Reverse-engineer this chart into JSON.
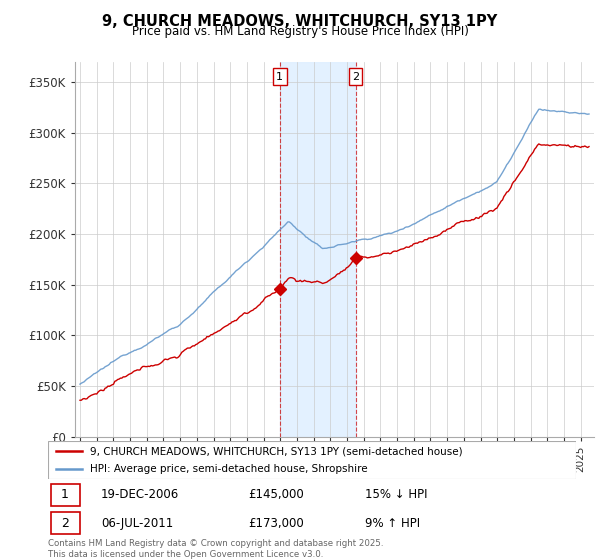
{
  "title": "9, CHURCH MEADOWS, WHITCHURCH, SY13 1PY",
  "subtitle": "Price paid vs. HM Land Registry's House Price Index (HPI)",
  "ylabel_ticks": [
    "£0",
    "£50K",
    "£100K",
    "£150K",
    "£200K",
    "£250K",
    "£300K",
    "£350K"
  ],
  "ytick_values": [
    0,
    50000,
    100000,
    150000,
    200000,
    250000,
    300000,
    350000
  ],
  "ylim": [
    0,
    370000
  ],
  "sale1_date": 2006.97,
  "sale1_price": 145000,
  "sale2_date": 2011.51,
  "sale2_price": 173000,
  "shade_color": "#ddeeff",
  "hpi_color": "#6699cc",
  "price_color": "#cc0000",
  "legend_price_label": "9, CHURCH MEADOWS, WHITCHURCH, SY13 1PY (semi-detached house)",
  "legend_hpi_label": "HPI: Average price, semi-detached house, Shropshire",
  "annotation1_date": "19-DEC-2006",
  "annotation1_price": "£145,000",
  "annotation1_hpi": "15% ↓ HPI",
  "annotation2_date": "06-JUL-2011",
  "annotation2_price": "£173,000",
  "annotation2_hpi": "9% ↑ HPI",
  "copyright_text": "Contains HM Land Registry data © Crown copyright and database right 2025.\nThis data is licensed under the Open Government Licence v3.0.",
  "background_color": "#ffffff",
  "grid_color": "#cccccc"
}
